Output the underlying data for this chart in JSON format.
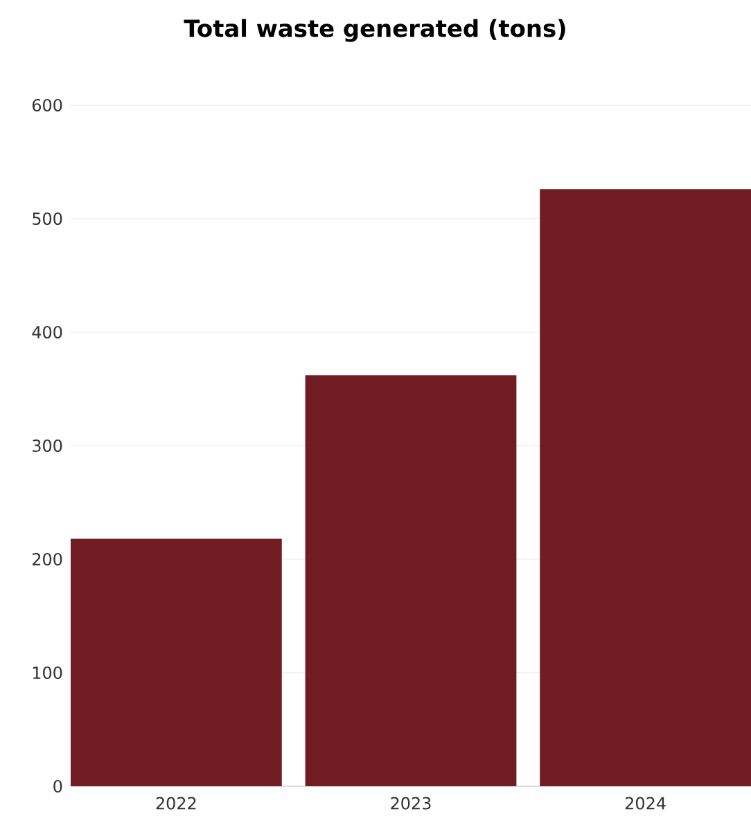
{
  "chart_data": {
    "type": "bar",
    "title": "Total waste generated (tons)",
    "categories": [
      "2022",
      "2023",
      "2024"
    ],
    "values": [
      218,
      362,
      526
    ],
    "color": "#701c22",
    "ylim": [
      0,
      600
    ],
    "yticks": [
      0,
      100,
      200,
      300,
      400,
      500,
      600
    ],
    "grid": "y"
  }
}
